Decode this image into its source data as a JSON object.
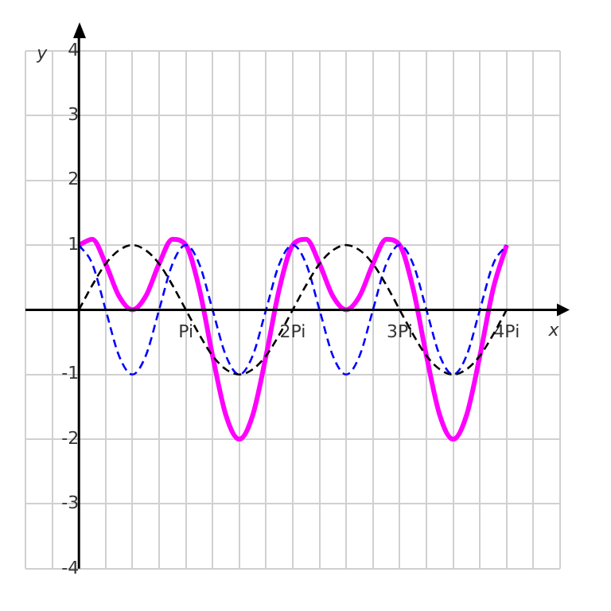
{
  "chart_data": {
    "type": "line",
    "xlabel": "x",
    "ylabel": "y",
    "x": [
      0,
      0.125,
      0.25,
      0.375,
      0.5,
      0.625,
      0.75,
      0.875,
      1,
      1.125,
      1.25,
      1.375,
      1.5,
      1.625,
      1.75,
      1.875,
      2,
      2.125,
      2.25,
      2.375,
      2.5,
      2.625,
      2.75,
      2.875,
      3,
      3.125,
      3.25,
      3.375,
      3.5,
      3.625,
      3.75,
      3.875,
      4
    ],
    "series": [
      {
        "color": "#000000",
        "line_style": "dashed",
        "values": [
          0,
          0.38,
          0.71,
          0.92,
          1,
          0.92,
          0.71,
          0.38,
          0,
          -0.38,
          -0.71,
          -0.92,
          -1,
          -0.92,
          -0.71,
          -0.38,
          0,
          0.38,
          0.71,
          0.92,
          1,
          0.92,
          0.71,
          0.38,
          0,
          -0.38,
          -0.71,
          -0.92,
          -1,
          -0.92,
          -0.71,
          -0.38,
          0
        ]
      },
      {
        "color": "#0000ff",
        "line_style": "dashed",
        "values": [
          1,
          0.71,
          0,
          -0.71,
          -1,
          -0.71,
          0,
          0.71,
          1,
          0.71,
          0,
          -0.71,
          -1,
          -0.71,
          0,
          0.71,
          1,
          0.71,
          0,
          -0.71,
          -1,
          -0.71,
          0,
          0.71,
          1,
          0.71,
          0,
          -0.71,
          -1,
          -0.71,
          0,
          0.71,
          1
        ]
      },
      {
        "color": "#ff00ff",
        "line_style": "solid",
        "values": [
          1,
          1.09,
          0.71,
          0.21,
          0,
          0.21,
          0.71,
          1.09,
          1,
          0.33,
          -0.71,
          -1.63,
          -2,
          -1.63,
          -0.71,
          0.33,
          1,
          1.09,
          0.71,
          0.21,
          0,
          0.21,
          0.71,
          1.09,
          1,
          0.33,
          -0.71,
          -1.63,
          -2,
          -1.63,
          -0.71,
          0.33,
          1
        ]
      }
    ],
    "xlim": [
      -0.5,
      4.5
    ],
    "xticks": [
      {
        "value": -0.5,
        "label": null
      },
      {
        "value": -0.25,
        "label": null
      },
      {
        "value": 0,
        "label": null
      },
      {
        "value": 0.25,
        "label": null
      },
      {
        "value": 0.5,
        "label": null
      },
      {
        "value": 0.75,
        "label": null
      },
      {
        "value": 1,
        "label": "Pi"
      },
      {
        "value": 1.25,
        "label": null
      },
      {
        "value": 1.5,
        "label": null
      },
      {
        "value": 1.75,
        "label": null
      },
      {
        "value": 2,
        "label": "2Pi"
      },
      {
        "value": 2.25,
        "label": null
      },
      {
        "value": 2.5,
        "label": null
      },
      {
        "value": 2.75,
        "label": null
      },
      {
        "value": 3,
        "label": "3Pi"
      },
      {
        "value": 3.25,
        "label": null
      },
      {
        "value": 3.5,
        "label": null
      },
      {
        "value": 3.75,
        "label": null
      },
      {
        "value": 4,
        "label": "4Pi"
      },
      {
        "value": 4.25,
        "label": null
      },
      {
        "value": 4.5,
        "label": null
      }
    ],
    "ylim": [
      -4,
      4
    ],
    "yticks": [
      -4,
      -3,
      -2,
      -1,
      1,
      2,
      3,
      4
    ],
    "grid": true,
    "legend": false,
    "marker": "none"
  }
}
